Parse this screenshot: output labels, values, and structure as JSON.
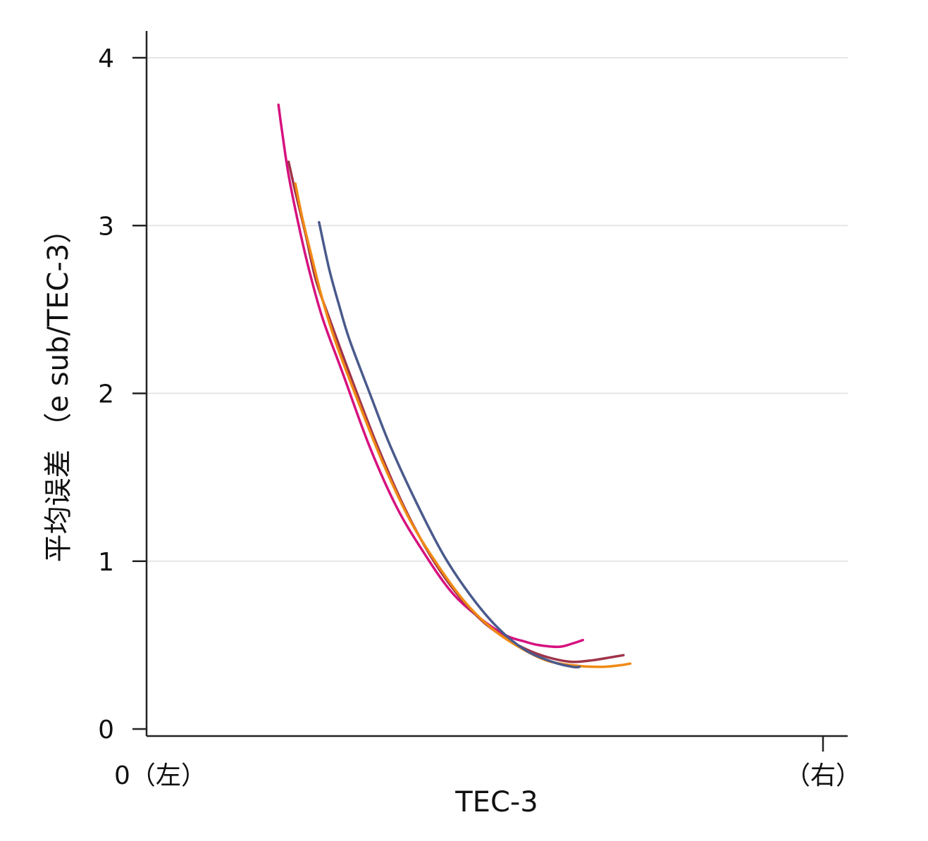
{
  "chart_data": {
    "type": "line",
    "title": "",
    "xlabel": "TEC-3",
    "ylabel": "平均误差 （e sub/TEC-3）",
    "x_tick_labels": {
      "left": "0（左）",
      "right": "（右）"
    },
    "xlim": [
      0,
      100
    ],
    "ylim": [
      0,
      4
    ],
    "y_ticks": [
      0,
      1,
      2,
      3,
      4
    ],
    "grid": "horizontal",
    "legend": "none",
    "series": [
      {
        "color": "#d6117f",
        "points": [
          [
            19.5,
            3.72
          ],
          [
            20,
            3.57
          ],
          [
            21,
            3.3
          ],
          [
            22.5,
            3.0
          ],
          [
            24,
            2.74
          ],
          [
            26,
            2.45
          ],
          [
            29,
            2.12
          ],
          [
            33,
            1.68
          ],
          [
            37,
            1.32
          ],
          [
            41,
            1.05
          ],
          [
            45,
            0.82
          ],
          [
            49,
            0.67
          ],
          [
            53,
            0.56
          ],
          [
            56,
            0.52
          ],
          [
            58,
            0.5
          ],
          [
            61,
            0.49
          ],
          [
            63,
            0.51
          ],
          [
            64.5,
            0.53
          ]
        ]
      },
      {
        "color": "#a0344a",
        "points": [
          [
            21,
            3.38
          ],
          [
            22,
            3.2
          ],
          [
            23.5,
            2.95
          ],
          [
            25,
            2.68
          ],
          [
            27,
            2.45
          ],
          [
            30,
            2.12
          ],
          [
            34,
            1.7
          ],
          [
            38,
            1.33
          ],
          [
            42,
            1.03
          ],
          [
            46,
            0.8
          ],
          [
            50,
            0.63
          ],
          [
            54,
            0.52
          ],
          [
            57,
            0.46
          ],
          [
            60,
            0.42
          ],
          [
            63,
            0.4
          ],
          [
            66,
            0.41
          ],
          [
            69,
            0.43
          ],
          [
            70.5,
            0.44
          ]
        ]
      },
      {
        "color": "#f08a14",
        "points": [
          [
            22,
            3.25
          ],
          [
            23,
            3.05
          ],
          [
            24.5,
            2.8
          ],
          [
            26,
            2.56
          ],
          [
            28,
            2.3
          ],
          [
            31,
            1.98
          ],
          [
            35,
            1.58
          ],
          [
            39,
            1.24
          ],
          [
            43,
            0.98
          ],
          [
            47,
            0.76
          ],
          [
            51,
            0.6
          ],
          [
            55,
            0.49
          ],
          [
            59,
            0.41
          ],
          [
            63,
            0.38
          ],
          [
            67,
            0.37
          ],
          [
            70,
            0.38
          ],
          [
            71.5,
            0.39
          ]
        ]
      },
      {
        "color": "#4a5a8c",
        "points": [
          [
            25.5,
            3.02
          ],
          [
            27,
            2.74
          ],
          [
            28.5,
            2.52
          ],
          [
            30,
            2.32
          ],
          [
            33,
            2.0
          ],
          [
            36,
            1.69
          ],
          [
            40,
            1.34
          ],
          [
            44,
            1.03
          ],
          [
            48,
            0.79
          ],
          [
            52,
            0.6
          ],
          [
            56,
            0.47
          ],
          [
            60,
            0.4
          ],
          [
            63,
            0.37
          ],
          [
            64,
            0.37
          ]
        ]
      }
    ]
  }
}
